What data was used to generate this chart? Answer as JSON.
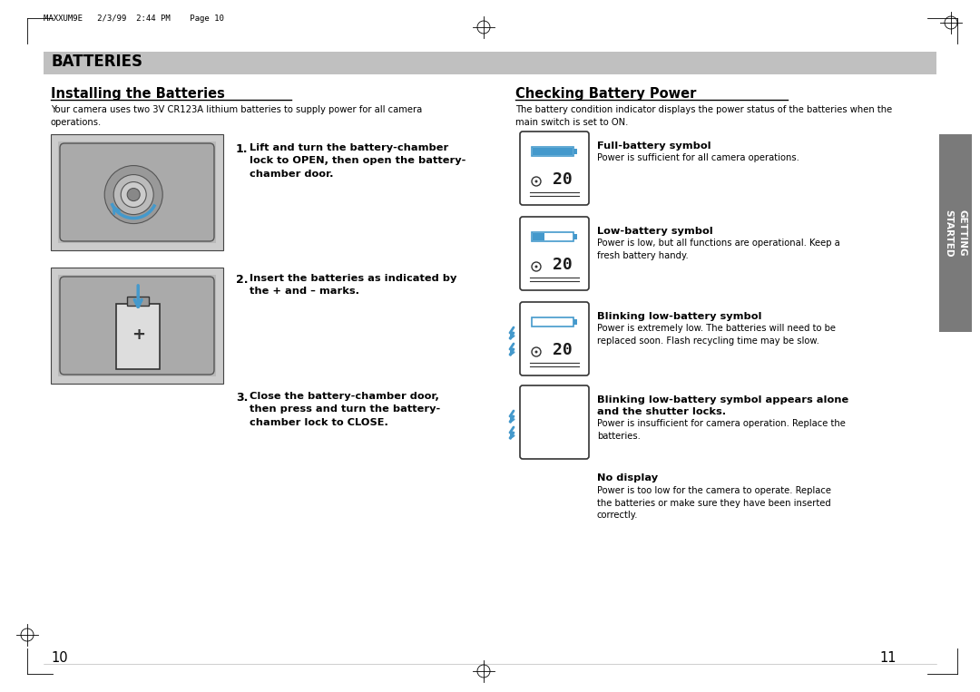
{
  "bg_color": "#ffffff",
  "page_header": "MAXXUM9E   2/3/99  2:44 PM    Page 10",
  "section_title": "BATTERIES",
  "section_bar_color": "#c0c0c0",
  "left_heading": "Installing the Batteries",
  "left_intro": "Your camera uses two 3V CR123A lithium batteries to supply power for all camera\noperations.",
  "step1_text": "Lift and turn the battery-chamber\nlock to OPEN, then open the battery-\nchamber door.",
  "step2_text": "Insert the batteries as indicated by\nthe + and – marks.",
  "step3_text": "Close the battery-chamber door,\nthen press and turn the battery-\nchamber lock to CLOSE.",
  "right_heading": "Checking Battery Power",
  "right_intro": "The battery condition indicator displays the power status of the batteries when the\nmain switch is set to ON.",
  "battery_items": [
    {
      "title": "Full-battery symbol",
      "desc": "Power is sufficient for all camera operations.",
      "fill": 1.0,
      "blink": false,
      "alone": false
    },
    {
      "title": "Low-battery symbol",
      "desc": "Power is low, but all functions are operational. Keep a\nfresh battery handy.",
      "fill": 0.3,
      "blink": false,
      "alone": false
    },
    {
      "title": "Blinking low-battery symbol",
      "desc": "Power is extremely low. The batteries will need to be\nreplaced soon. Flash recycling time may be slow.",
      "fill": 0.0,
      "blink": true,
      "alone": false
    },
    {
      "title": "Blinking low-battery symbol appears alone\nand the shutter locks.",
      "desc": "Power is insufficient for camera operation. Replace the\nbatteries.",
      "fill": 0.0,
      "blink": true,
      "alone": true
    }
  ],
  "no_display_title": "No display",
  "no_display_desc": "Power is too low for the camera to operate. Replace\nthe batteries or make sure they have been inserted\ncorrectly.",
  "getting_started_label": "GETTING\nSTARTED",
  "page_left": "10",
  "page_right": "11",
  "accent_color": "#4499cc",
  "tab_color": "#7a7a7a",
  "img_bg": "#cccccc",
  "img_dark": "#aaaaaa",
  "img_darker": "#888888"
}
